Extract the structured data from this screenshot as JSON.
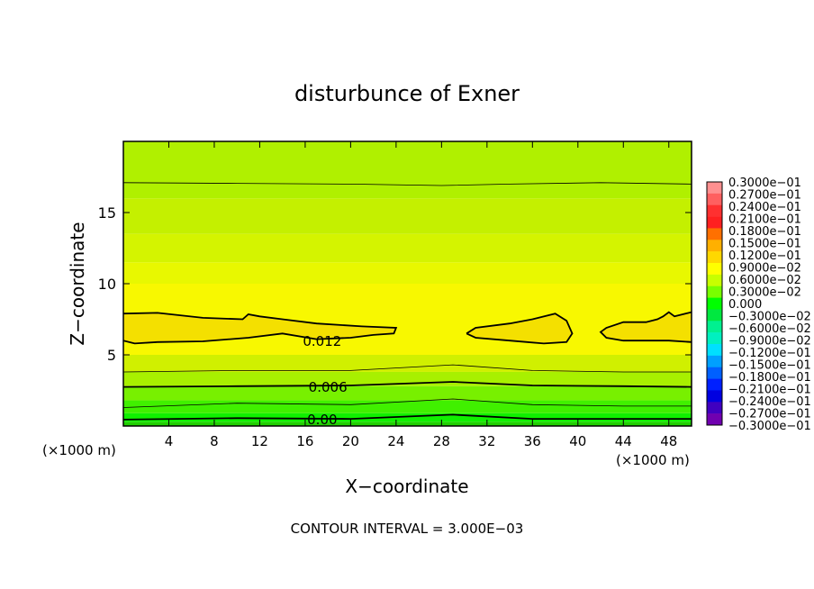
{
  "chart_data": {
    "type": "heatmap",
    "title": "disturbunce of Exner",
    "xlabel": "X−coordinate",
    "ylabel": "Z−coordinate",
    "x_unit_left": "(×1000 m)",
    "x_unit_right": "(×1000 m)",
    "xlim": [
      0,
      50
    ],
    "ylim": [
      0,
      20
    ],
    "x_ticks": [
      4,
      8,
      12,
      16,
      20,
      24,
      28,
      32,
      36,
      40,
      44,
      48
    ],
    "y_ticks": [
      5,
      10,
      15
    ],
    "contour_labels": [
      {
        "text": "0.012",
        "x": 17.5,
        "y": 6.0
      },
      {
        "text": "0.006",
        "x": 18.0,
        "y": 2.8
      },
      {
        "text": "0.00",
        "x": 17.5,
        "y": 0.5
      }
    ],
    "footer": "CONTOUR INTERVAL = 3.000E−03",
    "colorbar": {
      "labels": [
        "0.3000e−01",
        "0.2700e−01",
        "0.2400e−01",
        "0.2100e−01",
        "0.1800e−01",
        "0.1500e−01",
        "0.1200e−01",
        "0.9000e−02",
        "0.6000e−02",
        "0.3000e−02",
        "0.000",
        "−0.3000e−02",
        "−0.6000e−02",
        "−0.9000e−02",
        "−0.1200e−01",
        "−0.1500e−01",
        "−0.1800e−01",
        "−0.2100e−01",
        "−0.2400e−01",
        "−0.2700e−01",
        "−0.3000e−01"
      ],
      "colors": [
        "#ff9090",
        "#ff6060",
        "#ff3030",
        "#ff2020",
        "#ff7000",
        "#ffb000",
        "#ffd800",
        "#ffff00",
        "#c8ff00",
        "#78ff00",
        "#00ff00",
        "#00e840",
        "#00f090",
        "#00f0c0",
        "#00e0ff",
        "#00a0ff",
        "#0060ff",
        "#0020ff",
        "#0000e0",
        "#4000c0",
        "#7000b0"
      ]
    },
    "bands": [
      {
        "z0": 0.0,
        "z1": 0.3,
        "color": "#20d000"
      },
      {
        "z0": 0.3,
        "z1": 0.9,
        "color": "#10f000"
      },
      {
        "z0": 0.9,
        "z1": 1.8,
        "color": "#40f000"
      },
      {
        "z0": 1.8,
        "z1": 2.8,
        "color": "#78f000"
      },
      {
        "z0": 2.8,
        "z1": 3.8,
        "color": "#a8f000"
      },
      {
        "z0": 3.8,
        "z1": 5.0,
        "color": "#d0f000"
      },
      {
        "z0": 5.0,
        "z1": 10.0,
        "color": "#f8f800"
      },
      {
        "z0": 10.0,
        "z1": 11.5,
        "color": "#e8f800"
      },
      {
        "z0": 11.5,
        "z1": 13.5,
        "color": "#d4f400"
      },
      {
        "z0": 13.5,
        "z1": 16.0,
        "color": "#c4f000"
      },
      {
        "z0": 16.0,
        "z1": 20.0,
        "color": "#b0f000"
      }
    ],
    "contours": [
      {
        "weight": "thin",
        "points": [
          [
            0,
            17.1
          ],
          [
            10,
            17.05
          ],
          [
            20,
            17.0
          ],
          [
            28,
            16.9
          ],
          [
            34,
            17.0
          ],
          [
            42,
            17.1
          ],
          [
            50,
            17.0
          ]
        ]
      },
      {
        "weight": "thin",
        "points": [
          [
            0,
            3.8
          ],
          [
            10,
            3.9
          ],
          [
            20,
            3.9
          ],
          [
            29,
            4.3
          ],
          [
            36,
            3.9
          ],
          [
            44,
            3.8
          ],
          [
            50,
            3.8
          ]
        ]
      },
      {
        "weight": "thick",
        "points": [
          [
            0,
            2.75
          ],
          [
            10,
            2.8
          ],
          [
            20,
            2.85
          ],
          [
            29,
            3.1
          ],
          [
            36,
            2.85
          ],
          [
            44,
            2.8
          ],
          [
            50,
            2.75
          ]
        ]
      },
      {
        "weight": "thin",
        "points": [
          [
            0,
            1.3
          ],
          [
            10,
            1.6
          ],
          [
            20,
            1.5
          ],
          [
            29,
            1.9
          ],
          [
            36,
            1.5
          ],
          [
            44,
            1.4
          ],
          [
            50,
            1.4
          ]
        ]
      },
      {
        "weight": "thick",
        "points": [
          [
            0,
            0.45
          ],
          [
            10,
            0.55
          ],
          [
            20,
            0.5
          ],
          [
            29,
            0.8
          ],
          [
            36,
            0.5
          ],
          [
            44,
            0.5
          ],
          [
            50,
            0.5
          ]
        ]
      }
    ],
    "closed_contours": [
      {
        "points": [
          [
            0,
            7.9
          ],
          [
            3,
            7.95
          ],
          [
            7,
            7.6
          ],
          [
            10.5,
            7.5
          ],
          [
            11,
            7.85
          ],
          [
            12,
            7.7
          ],
          [
            14,
            7.5
          ],
          [
            17,
            7.2
          ],
          [
            21,
            7.0
          ],
          [
            24,
            6.9
          ],
          [
            23.8,
            6.5
          ],
          [
            22,
            6.4
          ],
          [
            20,
            6.2
          ],
          [
            17,
            6.1
          ],
          [
            14,
            6.5
          ],
          [
            11,
            6.2
          ],
          [
            7,
            5.95
          ],
          [
            3,
            5.9
          ],
          [
            1,
            5.8
          ],
          [
            0,
            6.0
          ]
        ]
      },
      {
        "points": [
          [
            30.2,
            6.5
          ],
          [
            31,
            6.9
          ],
          [
            34,
            7.2
          ],
          [
            36,
            7.5
          ],
          [
            38,
            7.9
          ],
          [
            39,
            7.4
          ],
          [
            39.5,
            6.5
          ],
          [
            39,
            5.9
          ],
          [
            37,
            5.8
          ],
          [
            34,
            6.0
          ],
          [
            31,
            6.2
          ],
          [
            30.2,
            6.5
          ]
        ]
      },
      {
        "points": [
          [
            50,
            8.0
          ],
          [
            48.5,
            7.7
          ],
          [
            48,
            8.0
          ],
          [
            47.5,
            7.7
          ],
          [
            47,
            7.5
          ],
          [
            46,
            7.3
          ],
          [
            44,
            7.3
          ],
          [
            42.5,
            6.9
          ],
          [
            42,
            6.6
          ],
          [
            42.5,
            6.2
          ],
          [
            44,
            6.0
          ],
          [
            46,
            6.0
          ],
          [
            48,
            6.0
          ],
          [
            50,
            5.9
          ]
        ]
      }
    ]
  }
}
